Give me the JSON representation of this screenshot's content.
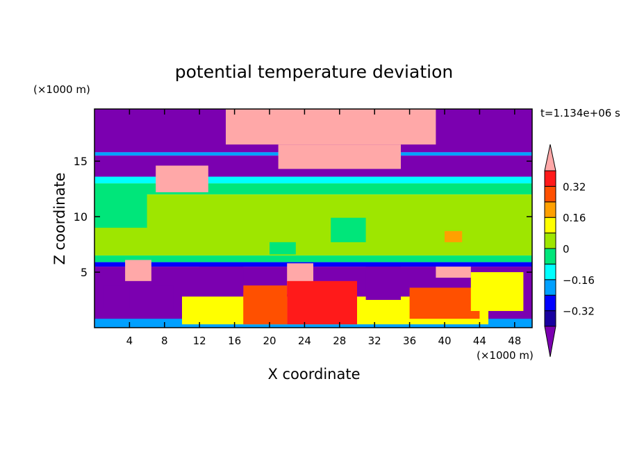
{
  "chart_data": {
    "type": "heatmap",
    "title": "potential temperature deviation",
    "xlabel": "X coordinate",
    "ylabel": "Z coordinate",
    "x_unit": "(×1000 m)",
    "y_unit": "(×1000 m)",
    "time_label": "t=1.134e+06 s",
    "xlim": [
      0,
      50
    ],
    "ylim": [
      0,
      19.7
    ],
    "x_ticks": [
      4,
      8,
      12,
      16,
      20,
      24,
      28,
      32,
      36,
      40,
      44,
      48
    ],
    "y_ticks": [
      5,
      10,
      15
    ],
    "colorbar": {
      "levels": [
        -0.4,
        -0.32,
        -0.24,
        -0.16,
        -0.08,
        0,
        0.08,
        0.16,
        0.24,
        0.32,
        0.4
      ],
      "tick_labels": [
        "0.32",
        "0.16",
        "0",
        "−0.16",
        "−0.32"
      ],
      "tick_values": [
        0.32,
        0.16,
        0,
        -0.16,
        -0.32
      ],
      "colors": [
        "#7b00b0",
        "#1800a0",
        "#0000ff",
        "#00a0ff",
        "#00ffff",
        "#00e67a",
        "#9ee600",
        "#ffff00",
        "#ffa000",
        "#ff5000",
        "#ff1a1a",
        "#ffa8a8"
      ],
      "extend": "both"
    },
    "regions": [
      {
        "x": [
          0,
          50
        ],
        "z": [
          15.8,
          19.7
        ],
        "value": -0.45
      },
      {
        "x": [
          0,
          50
        ],
        "z": [
          15.5,
          15.8
        ],
        "value": -0.2
      },
      {
        "x": [
          0,
          50
        ],
        "z": [
          13.6,
          15.5
        ],
        "value": -0.45
      },
      {
        "x": [
          0,
          50
        ],
        "z": [
          13.0,
          13.6
        ],
        "value": -0.12
      },
      {
        "x": [
          0,
          50
        ],
        "z": [
          12.0,
          13.0
        ],
        "value": -0.04
      },
      {
        "x": [
          0,
          50
        ],
        "z": [
          6.5,
          12.0
        ],
        "value": 0.04
      },
      {
        "x": [
          0,
          50
        ],
        "z": [
          5.9,
          6.5
        ],
        "value": -0.04
      },
      {
        "x": [
          0,
          50
        ],
        "z": [
          5.5,
          5.9
        ],
        "value": -0.3
      },
      {
        "x": [
          0,
          50
        ],
        "z": [
          0,
          5.5
        ],
        "value": -0.45
      },
      {
        "x": [
          0,
          50
        ],
        "z": [
          0,
          0.8
        ],
        "value": -0.2
      },
      {
        "x": [
          15,
          39
        ],
        "z": [
          16.5,
          19.7
        ],
        "value": 0.45
      },
      {
        "x": [
          21,
          35
        ],
        "z": [
          14.3,
          16.5
        ],
        "value": 0.45
      },
      {
        "x": [
          7,
          13
        ],
        "z": [
          12.2,
          14.6
        ],
        "value": 0.45
      },
      {
        "x": [
          0,
          6
        ],
        "z": [
          9.0,
          12.8
        ],
        "value": -0.04
      },
      {
        "x": [
          27,
          31
        ],
        "z": [
          7.7,
          9.9
        ],
        "value": -0.08
      },
      {
        "x": [
          20,
          23
        ],
        "z": [
          6.6,
          7.7
        ],
        "value": -0.08
      },
      {
        "x": [
          40,
          42
        ],
        "z": [
          7.7,
          8.7
        ],
        "value": 0.16
      },
      {
        "x": [
          3.5,
          6.5
        ],
        "z": [
          4.2,
          6.1
        ],
        "value": 0.45
      },
      {
        "x": [
          22,
          25
        ],
        "z": [
          3.0,
          5.8
        ],
        "value": 0.45
      },
      {
        "x": [
          39,
          43
        ],
        "z": [
          4.5,
          5.5
        ],
        "value": 0.45
      },
      {
        "x": [
          10,
          45
        ],
        "z": [
          0.3,
          2.8
        ],
        "value": 0.1
      },
      {
        "x": [
          17,
          22
        ],
        "z": [
          0.3,
          3.8
        ],
        "value": 0.3
      },
      {
        "x": [
          22,
          30
        ],
        "z": [
          0.3,
          4.2
        ],
        "value": 0.35
      },
      {
        "x": [
          36,
          44
        ],
        "z": [
          0.8,
          3.6
        ],
        "value": 0.3
      },
      {
        "x": [
          43,
          49
        ],
        "z": [
          1.5,
          5.0
        ],
        "value": 0.1
      },
      {
        "x": [
          31,
          35
        ],
        "z": [
          2.5,
          5.5
        ],
        "value": -0.45
      },
      {
        "x": [
          1,
          4
        ],
        "z": [
          1.8,
          3.8
        ],
        "value": -0.45
      },
      {
        "x": [
          6,
          9
        ],
        "z": [
          1.5,
          3.8
        ],
        "value": -0.45
      },
      {
        "x": [
          12,
          17
        ],
        "z": [
          3.2,
          5.5
        ],
        "value": -0.45
      }
    ]
  }
}
